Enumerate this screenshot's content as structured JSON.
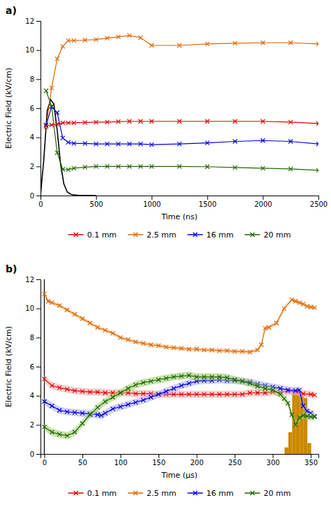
{
  "chart_data": [
    {
      "type": "line",
      "title": "a)",
      "xlabel": "Time (ns)",
      "ylabel": "Electric Field (kV/cm)",
      "xlim": [
        0,
        2500
      ],
      "ylim": [
        0,
        12
      ],
      "xticks": [
        0,
        500,
        1000,
        1500,
        2000,
        2500
      ],
      "yticks": [
        0,
        2,
        4,
        6,
        8,
        10,
        12
      ],
      "grid": false,
      "legend": "bottom",
      "series": [
        {
          "color": "#000000",
          "marker": "none",
          "x": [
            0,
            30,
            60,
            90,
            120,
            150,
            180,
            210,
            240,
            270,
            300,
            350,
            400,
            500
          ],
          "values": [
            0.0,
            2.5,
            5.8,
            6.6,
            6.3,
            4.5,
            2.2,
            0.8,
            0.25,
            0.1,
            0.04,
            0.01,
            0.005,
            0.002
          ]
        },
        {
          "name": "0.1 mm",
          "color": "#dd0000",
          "marker": "x",
          "x": [
            50,
            100,
            150,
            200,
            250,
            300,
            400,
            500,
            600,
            700,
            800,
            900,
            1000,
            1250,
            1500,
            1750,
            2000,
            2250,
            2500
          ],
          "values": [
            4.8,
            4.85,
            4.9,
            5.0,
            5.0,
            5.0,
            5.02,
            5.05,
            5.05,
            5.08,
            5.1,
            5.1,
            5.1,
            5.1,
            5.1,
            5.1,
            5.1,
            5.05,
            4.95
          ]
        },
        {
          "name": "2.5 mm",
          "color": "#dd6600",
          "marker": "x",
          "x": [
            50,
            100,
            150,
            200,
            250,
            300,
            400,
            500,
            600,
            700,
            800,
            900,
            1000,
            1250,
            1500,
            1750,
            2000,
            2250,
            2500
          ],
          "values": [
            4.7,
            7.4,
            9.4,
            10.25,
            10.65,
            10.65,
            10.68,
            10.72,
            10.82,
            10.9,
            11.0,
            10.85,
            10.32,
            10.32,
            10.42,
            10.47,
            10.5,
            10.5,
            10.42
          ]
        },
        {
          "name": "16 mm",
          "color": "#0000dd",
          "marker": "x",
          "x": [
            50,
            100,
            150,
            200,
            250,
            300,
            400,
            500,
            600,
            700,
            800,
            900,
            1000,
            1250,
            1500,
            1750,
            2000,
            2250,
            2500
          ],
          "values": [
            4.85,
            6.1,
            5.7,
            3.95,
            3.65,
            3.58,
            3.58,
            3.55,
            3.55,
            3.55,
            3.55,
            3.55,
            3.5,
            3.55,
            3.62,
            3.72,
            3.78,
            3.72,
            3.55
          ]
        },
        {
          "name": "20 mm",
          "color": "#226600",
          "marker": "x",
          "x": [
            50,
            100,
            150,
            200,
            250,
            300,
            400,
            500,
            600,
            700,
            800,
            900,
            1000,
            1250,
            1500,
            1750,
            2000,
            2250,
            2500
          ],
          "values": [
            7.2,
            6.15,
            2.95,
            1.8,
            1.78,
            1.88,
            1.95,
            2.0,
            2.0,
            2.0,
            2.0,
            2.0,
            2.0,
            2.0,
            1.98,
            1.93,
            1.88,
            1.83,
            1.73
          ]
        }
      ]
    },
    {
      "type": "line",
      "title": "b)",
      "xlabel": "Time (μs)",
      "ylabel": "Electric Field (kV/cm)",
      "xlim": [
        -5,
        360
      ],
      "ylim": [
        0,
        12
      ],
      "xticks": [
        0,
        50,
        100,
        150,
        200,
        250,
        300,
        350
      ],
      "yticks": [
        0,
        2,
        4,
        6,
        8,
        10,
        12
      ],
      "grid": false,
      "legend": "bottom",
      "series": [
        {
          "type": "histogram",
          "color": "#cc8800",
          "bins": [
            315.5,
            320.5,
            325.5,
            330.5,
            335.5,
            340.5,
            345.5,
            350.5
          ],
          "values": [
            0.45,
            1.5,
            4.3,
            4.2,
            4.1,
            3.85,
            0.75
          ]
        },
        {
          "type": "vline",
          "color": "#000000",
          "x": [
            0
          ]
        },
        {
          "name": "0.1 mm",
          "color": "#dd0000",
          "band_color": "#ffaaaa",
          "marker": "x",
          "x": [
            0,
            10,
            20,
            30,
            40,
            50,
            60,
            70,
            80,
            90,
            100,
            110,
            120,
            130,
            140,
            150,
            160,
            170,
            180,
            190,
            200,
            210,
            220,
            230,
            240,
            250,
            260,
            270,
            280,
            290,
            300,
            310,
            320,
            330,
            340,
            350,
            355
          ],
          "values": [
            5.15,
            4.7,
            4.55,
            4.45,
            4.35,
            4.3,
            4.25,
            4.25,
            4.2,
            4.2,
            4.2,
            4.2,
            4.15,
            4.15,
            4.15,
            4.1,
            4.1,
            4.1,
            4.1,
            4.1,
            4.1,
            4.1,
            4.1,
            4.1,
            4.1,
            4.1,
            4.1,
            4.2,
            4.2,
            4.2,
            4.25,
            4.25,
            4.3,
            4.3,
            4.15,
            4.1,
            4.05
          ],
          "lower": [
            4.88,
            4.45,
            4.3,
            4.2,
            4.1,
            4.05,
            4.0,
            4.0,
            3.95,
            3.95,
            3.95,
            3.95,
            3.9,
            3.9,
            3.9,
            3.85,
            3.85,
            3.85,
            3.85,
            3.85,
            3.85,
            3.85,
            3.85,
            3.85,
            3.85,
            3.85,
            3.85,
            3.95,
            3.95,
            3.95,
            4.0,
            4.0,
            4.05,
            4.05,
            3.9,
            3.85,
            3.8
          ],
          "upper": [
            5.42,
            4.95,
            4.8,
            4.7,
            4.6,
            4.55,
            4.5,
            4.5,
            4.45,
            4.45,
            4.45,
            4.45,
            4.4,
            4.4,
            4.4,
            4.35,
            4.35,
            4.35,
            4.35,
            4.35,
            4.35,
            4.35,
            4.35,
            4.35,
            4.35,
            4.35,
            4.35,
            4.45,
            4.45,
            4.45,
            4.5,
            4.5,
            4.55,
            4.55,
            4.4,
            4.35,
            4.3
          ]
        },
        {
          "name": "2.5 mm",
          "color": "#dd6600",
          "band_color": "#ffcc99",
          "marker": "x",
          "x": [
            0,
            5,
            10,
            20,
            30,
            40,
            50,
            60,
            70,
            80,
            90,
            100,
            110,
            120,
            130,
            140,
            150,
            160,
            170,
            180,
            190,
            200,
            210,
            220,
            230,
            240,
            250,
            260,
            270,
            280,
            285,
            290,
            295,
            305,
            315,
            325,
            330,
            335,
            340,
            345,
            350,
            355
          ],
          "values": [
            11.0,
            10.5,
            10.4,
            10.2,
            9.9,
            9.6,
            9.3,
            9.0,
            8.7,
            8.5,
            8.3,
            8.0,
            7.85,
            7.7,
            7.6,
            7.5,
            7.45,
            7.35,
            7.3,
            7.25,
            7.2,
            7.2,
            7.15,
            7.15,
            7.1,
            7.1,
            7.05,
            7.05,
            7.0,
            7.15,
            7.5,
            8.65,
            8.7,
            9.0,
            10.0,
            10.6,
            10.5,
            10.4,
            10.3,
            10.15,
            10.1,
            10.05
          ],
          "lower": [
            10.85,
            10.35,
            10.25,
            10.05,
            9.75,
            9.45,
            9.15,
            8.85,
            8.55,
            8.35,
            8.15,
            7.85,
            7.7,
            7.55,
            7.45,
            7.35,
            7.3,
            7.2,
            7.15,
            7.1,
            7.05,
            7.05,
            7.0,
            7.0,
            6.95,
            6.95,
            6.9,
            6.9,
            6.85,
            7.0,
            7.35,
            8.5,
            8.55,
            8.85,
            9.85,
            10.45,
            10.35,
            10.25,
            10.15,
            10.0,
            9.95,
            9.9
          ],
          "upper": [
            11.15,
            10.65,
            10.55,
            10.35,
            10.05,
            9.75,
            9.45,
            9.15,
            8.85,
            8.65,
            8.45,
            8.15,
            8.0,
            7.85,
            7.75,
            7.65,
            7.6,
            7.5,
            7.45,
            7.4,
            7.35,
            7.35,
            7.3,
            7.3,
            7.25,
            7.25,
            7.2,
            7.2,
            7.15,
            7.3,
            7.65,
            8.8,
            8.85,
            9.15,
            10.15,
            10.75,
            10.65,
            10.55,
            10.45,
            10.3,
            10.25,
            10.2
          ]
        },
        {
          "name": "16 mm",
          "color": "#0000dd",
          "band_color": "#aaaaff",
          "marker": "x",
          "x": [
            0,
            10,
            20,
            30,
            40,
            50,
            60,
            70,
            75,
            80,
            90,
            100,
            110,
            120,
            130,
            140,
            150,
            160,
            170,
            180,
            190,
            200,
            210,
            220,
            230,
            240,
            250,
            260,
            270,
            280,
            290,
            300,
            310,
            320,
            330,
            335,
            340,
            345,
            350,
            355
          ],
          "values": [
            3.6,
            3.3,
            3.0,
            2.9,
            2.85,
            2.8,
            2.75,
            2.7,
            2.65,
            2.8,
            3.1,
            3.25,
            3.4,
            3.55,
            3.7,
            3.9,
            4.1,
            4.3,
            4.5,
            4.7,
            4.85,
            5.0,
            5.05,
            5.05,
            5.1,
            5.05,
            5.05,
            5.0,
            4.95,
            4.8,
            4.7,
            4.6,
            4.5,
            4.4,
            4.35,
            4.4,
            3.3,
            2.95,
            2.8,
            2.6
          ],
          "lower": [
            3.35,
            3.05,
            2.75,
            2.65,
            2.6,
            2.55,
            2.5,
            2.45,
            2.4,
            2.55,
            2.85,
            3.0,
            3.15,
            3.3,
            3.45,
            3.65,
            3.85,
            4.05,
            4.25,
            4.45,
            4.6,
            4.75,
            4.8,
            4.8,
            4.85,
            4.8,
            4.8,
            4.75,
            4.7,
            4.55,
            4.45,
            4.35,
            4.25,
            4.15,
            4.1,
            4.15,
            3.05,
            2.7,
            2.55,
            2.35
          ],
          "upper": [
            3.85,
            3.55,
            3.25,
            3.15,
            3.1,
            3.05,
            3.0,
            2.95,
            2.9,
            3.05,
            3.35,
            3.5,
            3.65,
            3.8,
            3.95,
            4.15,
            4.35,
            4.55,
            4.75,
            4.95,
            5.1,
            5.25,
            5.3,
            5.3,
            5.35,
            5.3,
            5.3,
            5.25,
            5.2,
            5.05,
            4.95,
            4.85,
            4.75,
            4.65,
            4.6,
            4.65,
            3.55,
            3.2,
            3.05,
            2.85
          ]
        },
        {
          "name": "20 mm",
          "color": "#226600",
          "band_color": "#99cc66",
          "marker": "x",
          "x": [
            0,
            10,
            20,
            30,
            40,
            50,
            60,
            70,
            80,
            90,
            100,
            110,
            120,
            130,
            140,
            150,
            160,
            170,
            180,
            190,
            200,
            210,
            220,
            230,
            240,
            250,
            260,
            270,
            280,
            290,
            300,
            310,
            315,
            320,
            325,
            330,
            335,
            340,
            345,
            350,
            355
          ],
          "values": [
            1.85,
            1.5,
            1.35,
            1.25,
            1.5,
            2.1,
            2.7,
            3.2,
            3.6,
            3.9,
            4.2,
            4.5,
            4.75,
            4.9,
            5.0,
            5.1,
            5.2,
            5.3,
            5.35,
            5.4,
            5.3,
            5.3,
            5.3,
            5.3,
            5.25,
            5.1,
            5.0,
            4.85,
            4.65,
            4.5,
            4.4,
            4.1,
            3.8,
            3.5,
            2.7,
            2.0,
            2.5,
            2.65,
            2.6,
            2.55,
            2.55
          ],
          "lower": [
            1.6,
            1.25,
            1.1,
            1.0,
            1.25,
            1.85,
            2.45,
            2.95,
            3.35,
            3.65,
            3.95,
            4.25,
            4.5,
            4.65,
            4.75,
            4.85,
            4.95,
            5.05,
            5.1,
            5.15,
            5.05,
            5.05,
            5.05,
            5.05,
            5.0,
            4.85,
            4.75,
            4.6,
            4.4,
            4.25,
            4.15,
            3.85,
            3.55,
            3.25,
            2.45,
            1.75,
            2.25,
            2.4,
            2.35,
            2.3,
            2.3
          ],
          "upper": [
            2.1,
            1.75,
            1.6,
            1.5,
            1.75,
            2.35,
            2.95,
            3.45,
            3.85,
            4.15,
            4.45,
            4.75,
            5.0,
            5.15,
            5.25,
            5.35,
            5.45,
            5.55,
            5.6,
            5.65,
            5.55,
            5.55,
            5.55,
            5.55,
            5.5,
            5.35,
            5.25,
            5.1,
            4.9,
            4.75,
            4.65,
            4.35,
            4.05,
            3.75,
            2.95,
            2.25,
            2.75,
            2.9,
            2.85,
            2.8,
            2.8
          ]
        }
      ]
    }
  ]
}
